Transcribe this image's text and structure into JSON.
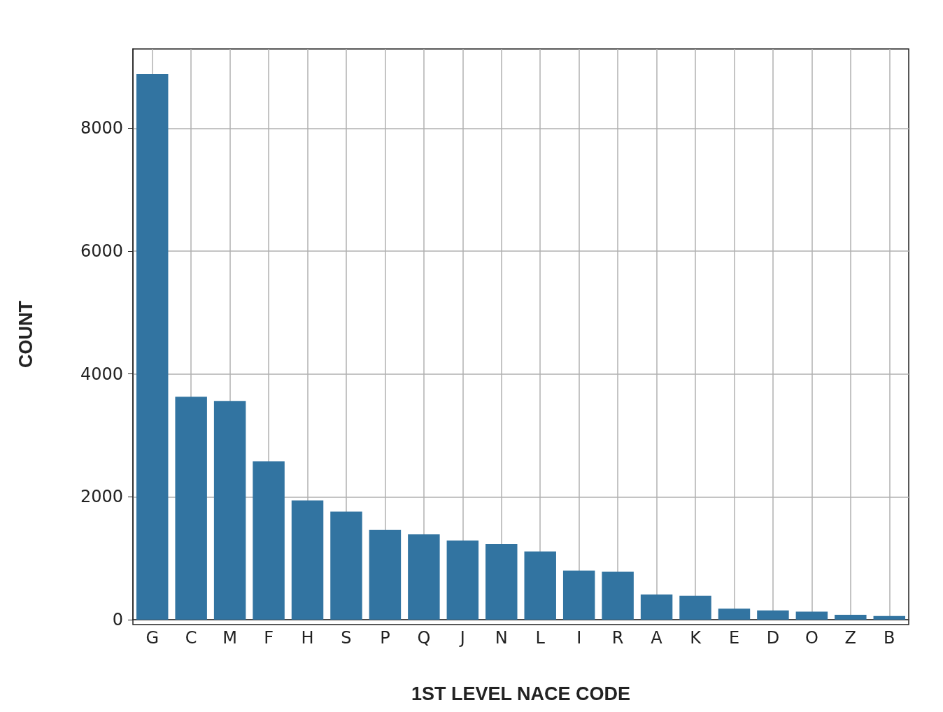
{
  "chart_data": {
    "type": "bar",
    "xlabel": "1ST LEVEL NACE CODE",
    "ylabel": "COUNT",
    "categories": [
      "G",
      "C",
      "M",
      "F",
      "H",
      "S",
      "P",
      "Q",
      "J",
      "N",
      "L",
      "I",
      "R",
      "A",
      "K",
      "E",
      "D",
      "O",
      "Z",
      "B"
    ],
    "values": [
      8880,
      3630,
      3560,
      2580,
      1940,
      1760,
      1460,
      1390,
      1290,
      1230,
      1110,
      800,
      780,
      410,
      390,
      180,
      150,
      130,
      80,
      60
    ],
    "color": "#3274a1",
    "ylim": [
      0,
      9290
    ],
    "yticks": [
      0,
      2000,
      4000,
      6000,
      8000
    ],
    "grid": true
  }
}
